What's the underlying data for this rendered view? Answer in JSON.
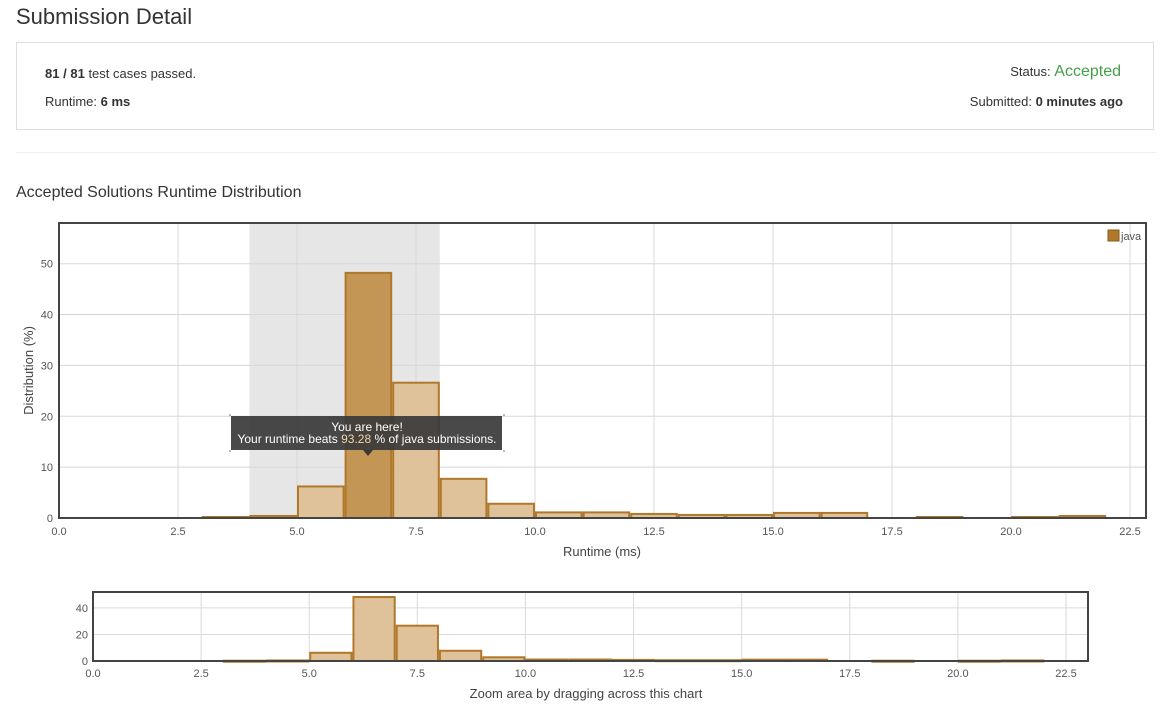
{
  "page_title": "Submission Detail",
  "summary": {
    "passed": "81",
    "sep": "/",
    "total": "81",
    "passed_text": "test cases passed.",
    "runtime_label": "Runtime:",
    "runtime_value": "6 ms",
    "status_label": "Status:",
    "status_value": "Accepted",
    "submitted_label": "Submitted:",
    "submitted_value": "0 minutes ago"
  },
  "colors": {
    "accent_green": "#43a047",
    "bar_fill": "#dfc29a",
    "bar_highlight": "#c39656",
    "bar_stroke": "#b0782a",
    "legend_swatch": "#b0782a"
  },
  "distribution_heading": "Accepted Solutions Runtime Distribution",
  "tooltip": {
    "line1": "You are here!",
    "line2_prefix": "Your runtime beats",
    "percent": "93.28",
    "line2_suffix": "% of java submissions."
  },
  "navigator_label": "Zoom area by dragging across this chart",
  "chart_data": {
    "type": "bar",
    "xlabel": "Runtime (ms)",
    "ylabel": "Distribution (%)",
    "xlim": [
      0,
      22.5
    ],
    "ylim": [
      0,
      58
    ],
    "x_ticks": [
      "0.0",
      "2.5",
      "5.0",
      "7.5",
      "10.0",
      "12.5",
      "15.0",
      "17.5",
      "20.0",
      "22.5"
    ],
    "y_ticks": [
      "0",
      "10",
      "20",
      "30",
      "40",
      "50"
    ],
    "legend": "java",
    "highlight_range": [
      4,
      8
    ],
    "highlight_bin": 6,
    "series": [
      {
        "name": "java",
        "bins": [
          {
            "x": 3,
            "value": 0.2
          },
          {
            "x": 4,
            "value": 0.4
          },
          {
            "x": 5,
            "value": 6.2
          },
          {
            "x": 6,
            "value": 48.2
          },
          {
            "x": 7,
            "value": 26.6
          },
          {
            "x": 8,
            "value": 7.7
          },
          {
            "x": 9,
            "value": 2.8
          },
          {
            "x": 10,
            "value": 1.1
          },
          {
            "x": 11,
            "value": 1.1
          },
          {
            "x": 12,
            "value": 0.8
          },
          {
            "x": 13,
            "value": 0.6
          },
          {
            "x": 14,
            "value": 0.6
          },
          {
            "x": 15,
            "value": 1.0
          },
          {
            "x": 16,
            "value": 1.0
          },
          {
            "x": 18,
            "value": 0.2
          },
          {
            "x": 20,
            "value": 0.2
          },
          {
            "x": 21,
            "value": 0.4
          }
        ]
      }
    ],
    "navigator": {
      "y_ticks": [
        "0",
        "20",
        "40"
      ],
      "ylim": [
        0,
        52
      ]
    }
  }
}
